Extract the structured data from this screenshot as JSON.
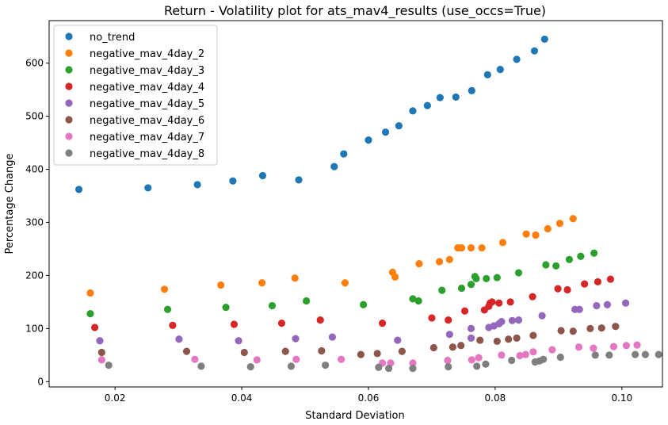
{
  "chart_data": {
    "type": "scatter",
    "title": "Return - Volatility plot for ats_mav4_results (use_occs=True)",
    "xlabel": "Standard Deviation",
    "ylabel": "Percentage Change",
    "xlim": [
      0.0096,
      0.1064
    ],
    "ylim": [
      -10,
      680
    ],
    "x_ticks": [
      "0.02",
      "0.04",
      "0.06",
      "0.08",
      "0.10"
    ],
    "y_ticks": [
      "0",
      "100",
      "200",
      "300",
      "400",
      "500",
      "600"
    ],
    "grid": false,
    "legend_position": "top-left",
    "series": [
      {
        "name": "no_trend",
        "color": "#1f77b4",
        "points": [
          [
            0.0143,
            362
          ],
          [
            0.0252,
            365
          ],
          [
            0.033,
            371
          ],
          [
            0.0386,
            378
          ],
          [
            0.0433,
            388
          ],
          [
            0.049,
            380
          ],
          [
            0.0546,
            405
          ],
          [
            0.0561,
            429
          ],
          [
            0.06,
            455
          ],
          [
            0.0627,
            470
          ],
          [
            0.0648,
            482
          ],
          [
            0.067,
            510
          ],
          [
            0.0693,
            520
          ],
          [
            0.0713,
            535
          ],
          [
            0.0738,
            536
          ],
          [
            0.0763,
            548
          ],
          [
            0.0788,
            578
          ],
          [
            0.0808,
            588
          ],
          [
            0.0834,
            607
          ],
          [
            0.0862,
            623
          ],
          [
            0.0878,
            645
          ]
        ]
      },
      {
        "name": "negative_mav_4day_2",
        "color": "#ff7f0e",
        "points": [
          [
            0.0161,
            167
          ],
          [
            0.0278,
            174
          ],
          [
            0.0367,
            182
          ],
          [
            0.0432,
            186
          ],
          [
            0.0484,
            195
          ],
          [
            0.0563,
            186
          ],
          [
            0.0638,
            206
          ],
          [
            0.0642,
            197
          ],
          [
            0.068,
            222
          ],
          [
            0.0712,
            226
          ],
          [
            0.0728,
            230
          ],
          [
            0.0741,
            252
          ],
          [
            0.0747,
            252
          ],
          [
            0.0762,
            252
          ],
          [
            0.0779,
            252
          ],
          [
            0.0812,
            262
          ],
          [
            0.0849,
            278
          ],
          [
            0.0864,
            276
          ],
          [
            0.0883,
            288
          ],
          [
            0.0902,
            298
          ],
          [
            0.0923,
            307
          ]
        ]
      },
      {
        "name": "negative_mav_4day_3",
        "color": "#2ca02c",
        "points": [
          [
            0.0161,
            128
          ],
          [
            0.0283,
            136
          ],
          [
            0.0375,
            140
          ],
          [
            0.0448,
            143
          ],
          [
            0.0502,
            152
          ],
          [
            0.0592,
            145
          ],
          [
            0.067,
            156
          ],
          [
            0.0679,
            152
          ],
          [
            0.0716,
            172
          ],
          [
            0.0747,
            176
          ],
          [
            0.0762,
            183
          ],
          [
            0.0768,
            198
          ],
          [
            0.077,
            194
          ],
          [
            0.0786,
            194
          ],
          [
            0.0803,
            196
          ],
          [
            0.0837,
            205
          ],
          [
            0.088,
            220
          ],
          [
            0.0896,
            218
          ],
          [
            0.0917,
            230
          ],
          [
            0.0935,
            236
          ],
          [
            0.0956,
            242
          ]
        ]
      },
      {
        "name": "negative_mav_4day_4",
        "color": "#d62728",
        "points": [
          [
            0.0168,
            102
          ],
          [
            0.0291,
            106
          ],
          [
            0.0388,
            108
          ],
          [
            0.0463,
            110
          ],
          [
            0.0524,
            116
          ],
          [
            0.0622,
            110
          ],
          [
            0.07,
            120
          ],
          [
            0.0726,
            116
          ],
          [
            0.0752,
            133
          ],
          [
            0.0783,
            135
          ],
          [
            0.079,
            142
          ],
          [
            0.0792,
            148
          ],
          [
            0.0795,
            150
          ],
          [
            0.0806,
            148
          ],
          [
            0.0824,
            150
          ],
          [
            0.0859,
            160
          ],
          [
            0.0899,
            175
          ],
          [
            0.0914,
            173
          ],
          [
            0.0941,
            184
          ],
          [
            0.0962,
            188
          ],
          [
            0.0982,
            193
          ]
        ]
      },
      {
        "name": "negative_mav_4day_5",
        "color": "#9467bd",
        "points": [
          [
            0.0176,
            77
          ],
          [
            0.0301,
            80
          ],
          [
            0.0395,
            77
          ],
          [
            0.0485,
            81
          ],
          [
            0.0543,
            84
          ],
          [
            0.0646,
            78
          ],
          [
            0.0728,
            89
          ],
          [
            0.0762,
            100
          ],
          [
            0.0762,
            82
          ],
          [
            0.079,
            102
          ],
          [
            0.0798,
            105
          ],
          [
            0.0806,
            109
          ],
          [
            0.081,
            113
          ],
          [
            0.0827,
            115
          ],
          [
            0.0837,
            116
          ],
          [
            0.0874,
            124
          ],
          [
            0.0926,
            136
          ],
          [
            0.0933,
            136
          ],
          [
            0.096,
            143
          ],
          [
            0.0977,
            145
          ],
          [
            0.1006,
            148
          ]
        ]
      },
      {
        "name": "negative_mav_4day_6",
        "color": "#8c564b",
        "points": [
          [
            0.0179,
            55
          ],
          [
            0.0313,
            57
          ],
          [
            0.0404,
            55
          ],
          [
            0.0469,
            57
          ],
          [
            0.0526,
            58
          ],
          [
            0.0588,
            51
          ],
          [
            0.0614,
            53
          ],
          [
            0.0653,
            57
          ],
          [
            0.0703,
            64
          ],
          [
            0.0733,
            65
          ],
          [
            0.0746,
            68
          ],
          [
            0.0776,
            78
          ],
          [
            0.0803,
            76
          ],
          [
            0.0821,
            80
          ],
          [
            0.0834,
            82
          ],
          [
            0.086,
            87
          ],
          [
            0.0904,
            96
          ],
          [
            0.0923,
            95
          ],
          [
            0.095,
            100
          ],
          [
            0.0968,
            101
          ],
          [
            0.099,
            104
          ]
        ]
      },
      {
        "name": "negative_mav_4day_7",
        "color": "#e377c2",
        "points": [
          [
            0.0179,
            41
          ],
          [
            0.0326,
            42
          ],
          [
            0.0424,
            41
          ],
          [
            0.0486,
            42
          ],
          [
            0.0557,
            42
          ],
          [
            0.0622,
            35
          ],
          [
            0.0635,
            35
          ],
          [
            0.067,
            35
          ],
          [
            0.0725,
            40
          ],
          [
            0.0763,
            41
          ],
          [
            0.0774,
            45
          ],
          [
            0.081,
            50
          ],
          [
            0.0839,
            49
          ],
          [
            0.0848,
            51
          ],
          [
            0.086,
            56
          ],
          [
            0.089,
            60
          ],
          [
            0.0932,
            65
          ],
          [
            0.0955,
            63
          ],
          [
            0.0987,
            66
          ],
          [
            0.1007,
            68
          ],
          [
            0.1024,
            69
          ]
        ]
      },
      {
        "name": "negative_mav_4day_8",
        "color": "#7f7f7f",
        "points": [
          [
            0.019,
            31
          ],
          [
            0.0336,
            29
          ],
          [
            0.0414,
            28
          ],
          [
            0.0478,
            29
          ],
          [
            0.0532,
            31
          ],
          [
            0.0616,
            27
          ],
          [
            0.0632,
            25
          ],
          [
            0.067,
            25
          ],
          [
            0.0726,
            28
          ],
          [
            0.0771,
            29
          ],
          [
            0.0785,
            33
          ],
          [
            0.0826,
            40
          ],
          [
            0.0863,
            37
          ],
          [
            0.087,
            39
          ],
          [
            0.0876,
            42
          ],
          [
            0.0903,
            46
          ],
          [
            0.0958,
            50
          ],
          [
            0.098,
            50
          ],
          [
            0.1021,
            51
          ],
          [
            0.1037,
            51
          ],
          [
            0.1058,
            51
          ]
        ]
      }
    ]
  }
}
